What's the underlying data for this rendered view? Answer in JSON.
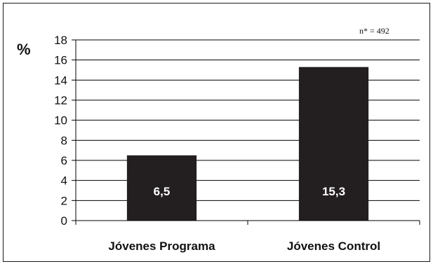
{
  "chart_data": {
    "type": "bar",
    "categories": [
      "Jóvenes Programa",
      "Jóvenes Control"
    ],
    "values": [
      6.5,
      15.3
    ],
    "data_labels": [
      "6,5",
      "15,3"
    ],
    "title": "",
    "xlabel": "",
    "ylabel": "%",
    "ylim": [
      0,
      18
    ],
    "yticks": [
      0,
      2,
      4,
      6,
      8,
      10,
      12,
      14,
      16,
      18
    ],
    "grid": true,
    "legend": "none",
    "annotation": "n* = 492",
    "colors": {
      "bar": "#231f20",
      "grid": "#000000",
      "data_label": "#ffffff"
    }
  }
}
